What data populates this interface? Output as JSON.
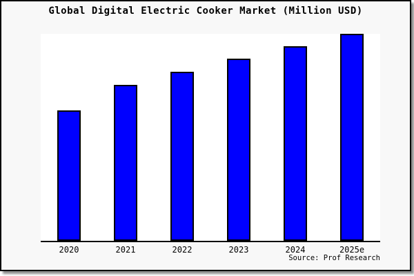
{
  "header": {
    "title": "Global Digital Electric Cooker Market (Million USD)"
  },
  "footer": {
    "source": "Source: Prof Research"
  },
  "colors": {
    "bar_fill": "#0000ff",
    "bar_border": "#000000",
    "panel_background": "#f8f8f8",
    "plot_background": "#ffffff",
    "axis": "#000000"
  },
  "chart_data": {
    "type": "bar",
    "title": "Global Digital Electric Cooker Market (Million USD)",
    "categories": [
      "2020",
      "2021",
      "2022",
      "2023",
      "2024",
      "2025e"
    ],
    "values": [
      63,
      75.3,
      81.7,
      88,
      94,
      100
    ],
    "value_note": "no y-axis or data labels shown; values are relative heights with 2025e = 100",
    "ylim": [
      0,
      100
    ],
    "xlabel": "",
    "ylabel": "",
    "grid": false,
    "legend": false,
    "y_axis_visible": false,
    "source": "Source: Prof Research"
  }
}
